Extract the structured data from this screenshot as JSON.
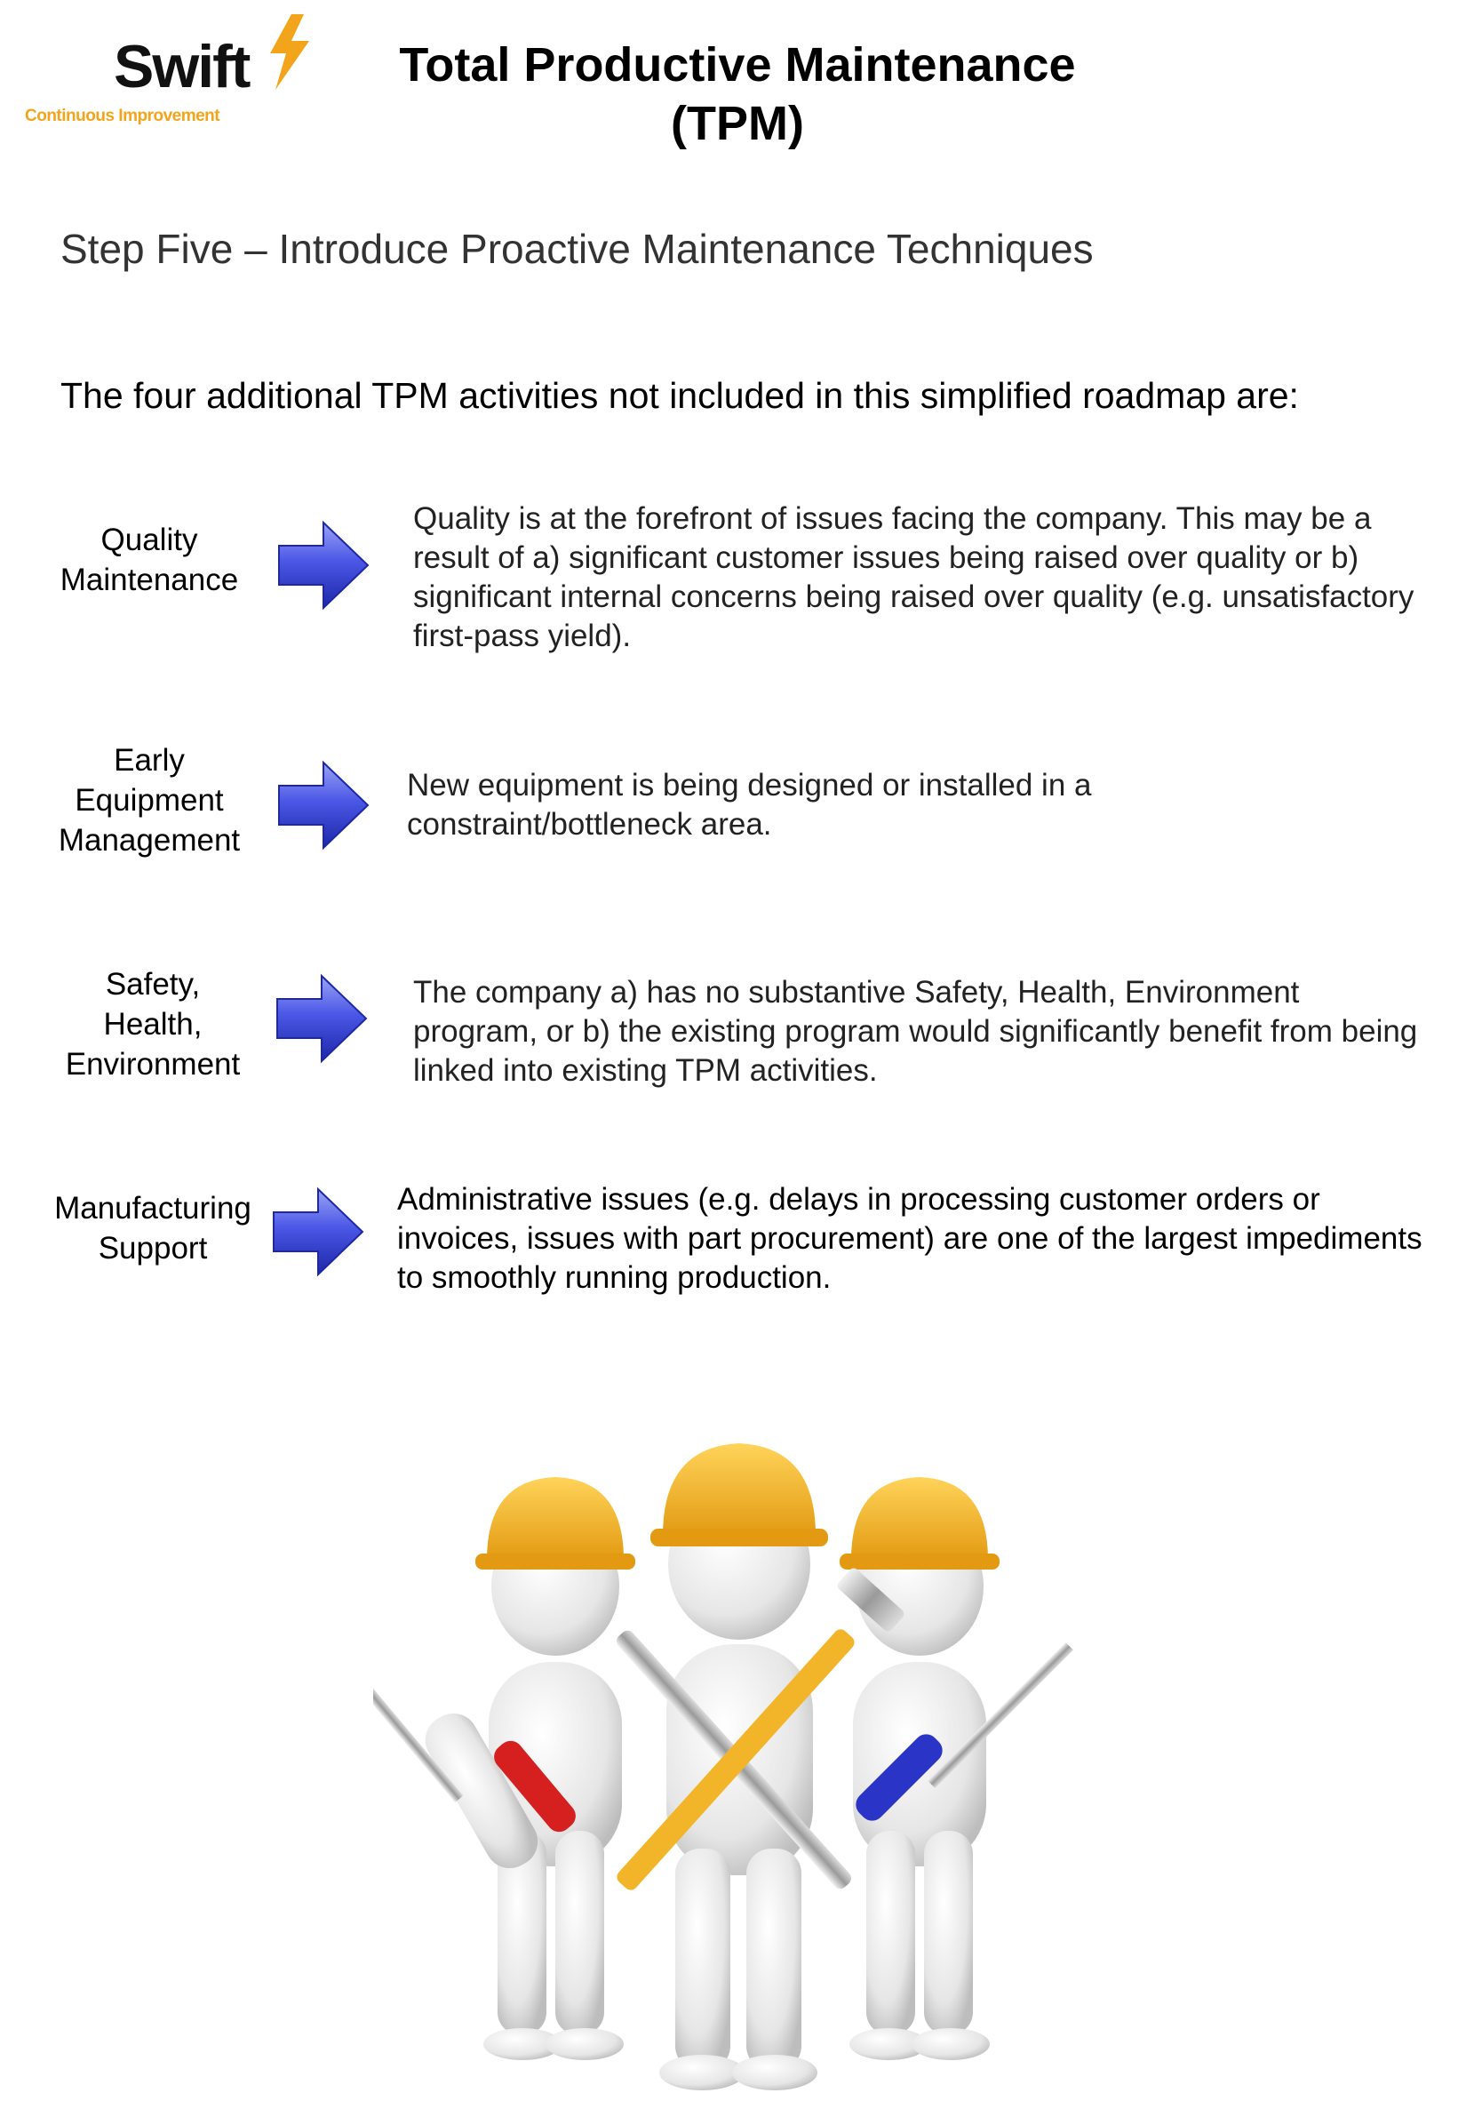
{
  "logo": {
    "brand": "Swift",
    "tagline": "Continuous Improvement"
  },
  "header": {
    "title_line1": "Total Productive Maintenance",
    "title_line2": "(TPM)"
  },
  "step": "Step Five – Introduce Proactive Maintenance Techniques",
  "intro": "The four additional TPM activities not included in this simplified roadmap are:",
  "activities": [
    {
      "label_lines": [
        "Quality",
        "Maintenance"
      ],
      "description": "Quality is at the forefront of issues facing the company. This may be a result of a) significant customer issues being raised over quality or b) significant internal concerns being raised over quality (e.g. unsatisfactory first-pass yield)."
    },
    {
      "label_lines": [
        "Early",
        "Equipment",
        "Management"
      ],
      "description": "New equipment is being designed or installed in a constraint/bottleneck area."
    },
    {
      "label_lines": [
        "Safety,",
        "Health,",
        "Environment"
      ],
      "description": "The company a) has no substantive Safety, Health, Environment program, or b) the existing program would significantly benefit from being linked into existing TPM activities."
    },
    {
      "label_lines": [
        "Manufacturing",
        "Support"
      ],
      "description": "Administrative issues (e.g. delays in processing customer orders or invoices, issues with part procurement) are one of the largest impediments to smoothly running production."
    }
  ],
  "icons": {
    "arrow": "right-arrow-icon",
    "bolt": "lightning-bolt-icon",
    "illustration": "maintenance-workers-illustration"
  },
  "colors": {
    "arrow_fill": "#3b46d8",
    "arrow_light": "#9aa4f5",
    "logo_accent": "#f2a51b",
    "helmet": "#f1b32c"
  }
}
